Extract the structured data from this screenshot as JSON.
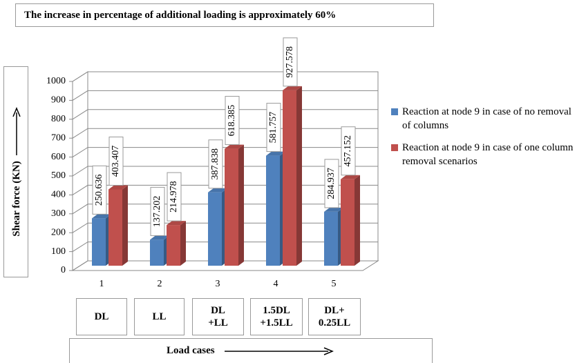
{
  "chart_data": {
    "type": "bar3d",
    "title": "The increase in percentage of additional loading is approximately 60%",
    "y_label": "Shear force (KN)",
    "x_label": "Load cases",
    "categories": [
      "1",
      "2",
      "3",
      "4",
      "5"
    ],
    "case_labels": [
      "DL",
      "LL",
      "DL\n+LL",
      "1.5DL\n+1.5LL",
      "DL+\n0.25LL"
    ],
    "series": [
      {
        "name": "Reaction at node 9  in case of no removal of columns",
        "color": "#4f81bd",
        "values": [
          250.636,
          137.202,
          387.838,
          581.757,
          284.937
        ]
      },
      {
        "name": "Reaction at node 9  in case of one column removal scenarios",
        "color": "#c0504d",
        "values": [
          403.407,
          214.978,
          618.385,
          927.578,
          457.152
        ]
      }
    ],
    "ylim": [
      0,
      1000
    ],
    "yticks": [
      0,
      100,
      200,
      300,
      400,
      500,
      600,
      700,
      800,
      900,
      1000
    ],
    "grid": true
  }
}
